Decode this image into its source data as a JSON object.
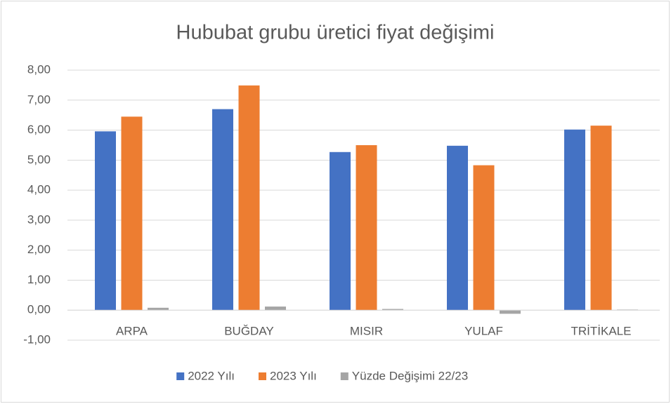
{
  "chart_data": {
    "type": "bar",
    "title": "Hububat grubu üretici fiyat değişimi",
    "categories": [
      "ARPA",
      "BUĞDAY",
      "MISIR",
      "YULAF",
      "TRİTİKALE"
    ],
    "series": [
      {
        "name": "2022 Yılı",
        "color": "#4472c4",
        "values": [
          5.96,
          6.7,
          5.27,
          5.48,
          6.02
        ]
      },
      {
        "name": "2023 Yılı",
        "color": "#ed7d31",
        "values": [
          6.45,
          7.49,
          5.5,
          4.83,
          6.15
        ]
      },
      {
        "name": "Yüzde Değişimi 22/23",
        "color": "#a5a5a5",
        "values": [
          0.08,
          0.12,
          0.04,
          -0.12,
          0.02
        ]
      }
    ],
    "ylim": [
      -1,
      8
    ],
    "yticks": [
      {
        "value": -1,
        "label": "-1,00"
      },
      {
        "value": 0,
        "label": "0,00"
      },
      {
        "value": 1,
        "label": "1,00"
      },
      {
        "value": 2,
        "label": "2,00"
      },
      {
        "value": 3,
        "label": "3,00"
      },
      {
        "value": 4,
        "label": "4,00"
      },
      {
        "value": 5,
        "label": "5,00"
      },
      {
        "value": 6,
        "label": "6,00"
      },
      {
        "value": 7,
        "label": "7,00"
      },
      {
        "value": 8,
        "label": "8,00"
      }
    ],
    "grid": true,
    "legend": "bottom"
  }
}
